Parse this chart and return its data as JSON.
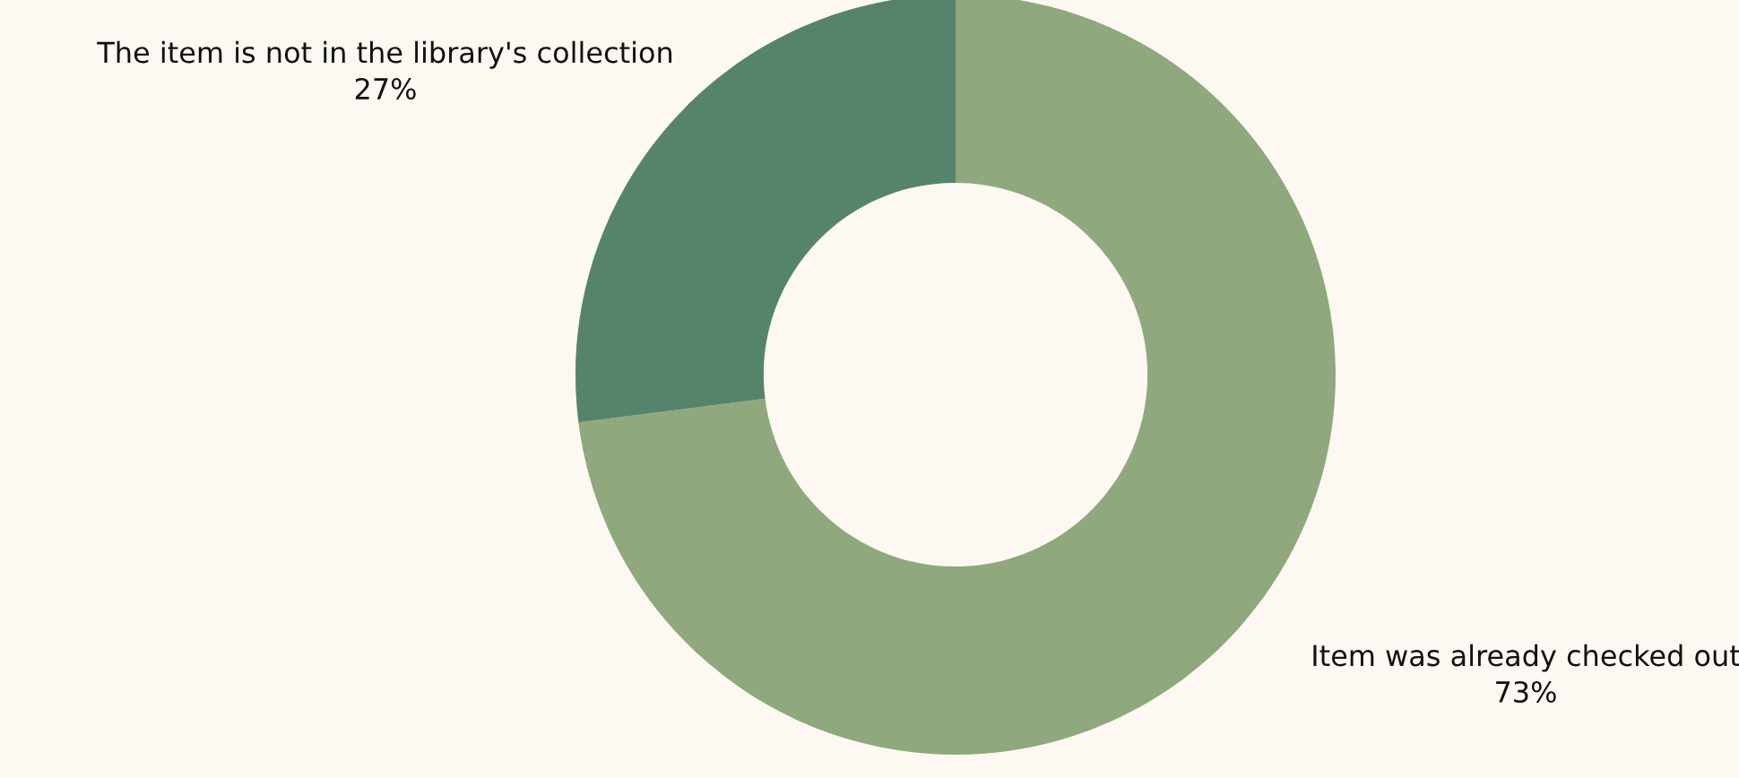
{
  "chart_data": {
    "type": "donut",
    "categories": [
      "Item was already checked out",
      "The item is not in the library's collection"
    ],
    "values": [
      73,
      27
    ],
    "colors": [
      "#8fa87e",
      "#56836c"
    ],
    "value_labels": [
      "73%",
      "27%"
    ]
  }
}
